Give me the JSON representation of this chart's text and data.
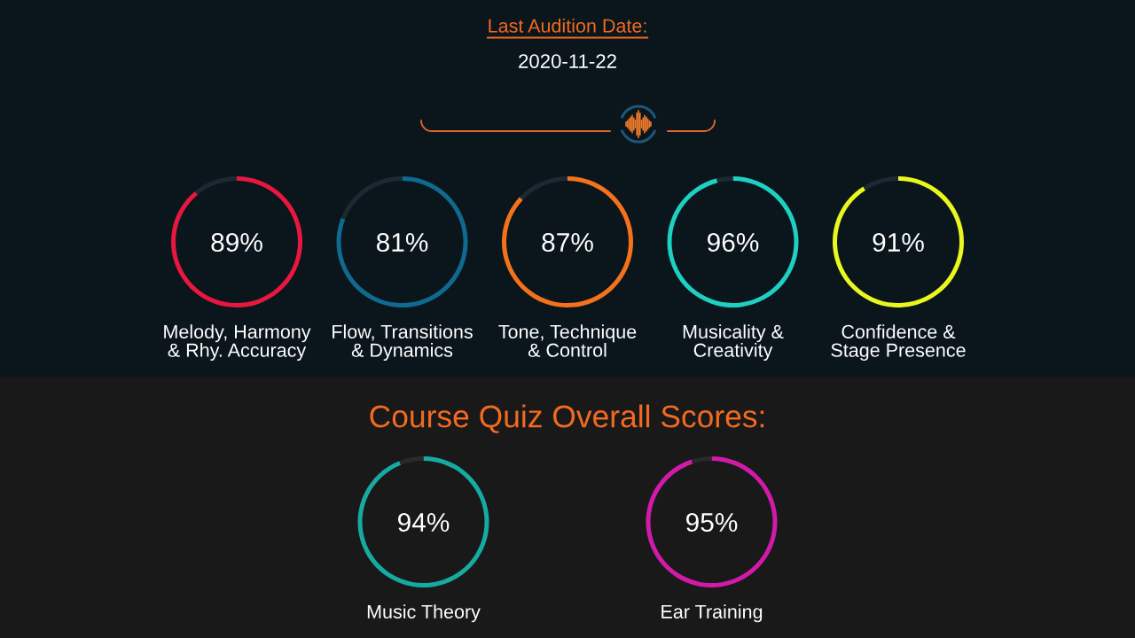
{
  "chart_data": [
    {
      "type": "other",
      "title": "Last Audition Date:",
      "subtitle": "2020-11-22"
    },
    {
      "type": "donut",
      "categories": [
        "Melody, Harmony\n& Rhy. Accuracy",
        null
      ],
      "values": [
        89,
        11
      ],
      "colors": [
        "#e8173f",
        "#1b2a32"
      ],
      "value_labels": [
        "89%",
        null
      ]
    },
    {
      "type": "donut",
      "categories": [
        "Flow, Transitions\n& Dynamics",
        null
      ],
      "values": [
        81,
        19
      ],
      "colors": [
        "#0e6a8e",
        "#1b2a32"
      ],
      "value_labels": [
        "81%",
        null
      ]
    },
    {
      "type": "donut",
      "categories": [
        "Tone, Technique\n& Control",
        null
      ],
      "values": [
        87,
        13
      ],
      "colors": [
        "#f5721c",
        "#1b2a32"
      ],
      "value_labels": [
        "87%",
        null
      ]
    },
    {
      "type": "donut",
      "categories": [
        "Musicality &\nCreativity",
        null
      ],
      "values": [
        96,
        4
      ],
      "colors": [
        "#1ecfc2",
        "#1b2a32"
      ],
      "value_labels": [
        "96%",
        null
      ]
    },
    {
      "type": "donut",
      "categories": [
        "Confidence &\nStage Presence",
        null
      ],
      "values": [
        91,
        9
      ],
      "colors": [
        "#e9f71e",
        "#1b2a32"
      ],
      "value_labels": [
        "91%",
        null
      ]
    },
    {
      "type": "other",
      "title": "Course Quiz Overall Scores:"
    },
    {
      "type": "donut",
      "categories": [
        "Music Theory",
        null
      ],
      "values": [
        94,
        6
      ],
      "colors": [
        "#16aaa0",
        "#2a2a2a"
      ],
      "value_labels": [
        "94%",
        null
      ]
    },
    {
      "type": "donut",
      "categories": [
        "Ear Training",
        null
      ],
      "values": [
        95,
        5
      ],
      "colors": [
        "#d21aa8",
        "#2a2a2a"
      ],
      "value_labels": [
        "95%",
        null
      ]
    }
  ]
}
